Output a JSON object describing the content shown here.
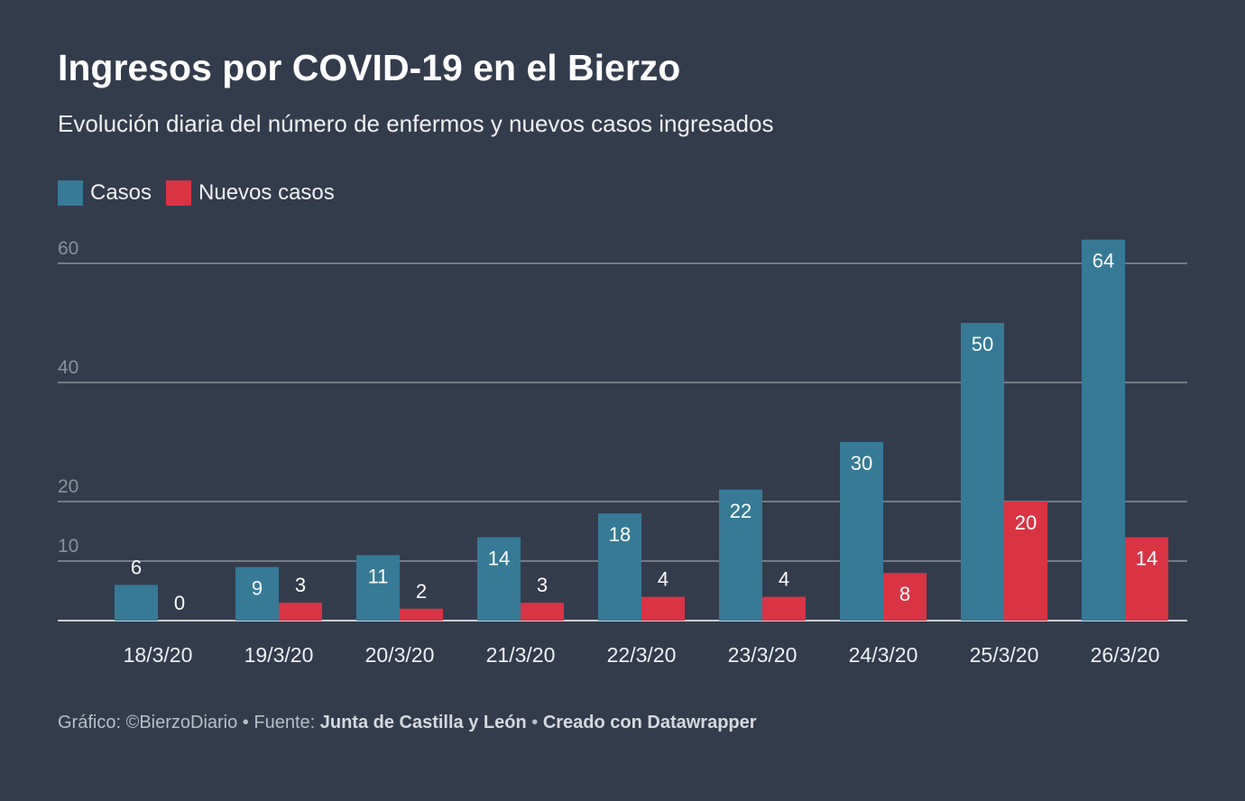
{
  "header": {
    "title": "Ingresos por COVID-19 en el Bierzo",
    "subtitle": "Evolución diaria del número de enfermos y nuevos casos ingresados"
  },
  "footer": {
    "prefix": "Gráfico: ©BierzoDiario • Fuente: ",
    "source": "Junta de Castilla y León",
    "separator": " • ",
    "credit": "Creado con Datawrapper"
  },
  "colors": {
    "background": "#333c4d",
    "casos": "#377a96",
    "nuevos": "#d83444",
    "grid": "#8a8f99",
    "axis_label": "#8b919b"
  },
  "chart_data": {
    "type": "bar",
    "title": "Ingresos por COVID-19 en el Bierzo",
    "subtitle": "Evolución diaria del número de enfermos y nuevos casos ingresados",
    "categories": [
      "18/3/20",
      "19/3/20",
      "20/3/20",
      "21/3/20",
      "22/3/20",
      "23/3/20",
      "24/3/20",
      "25/3/20",
      "26/3/20"
    ],
    "series": [
      {
        "name": "Casos",
        "values": [
          6,
          9,
          11,
          14,
          18,
          22,
          30,
          50,
          64
        ]
      },
      {
        "name": "Nuevos casos",
        "values": [
          0,
          3,
          2,
          3,
          4,
          4,
          8,
          20,
          14
        ]
      }
    ],
    "yticks": [
      10,
      20,
      40,
      60
    ],
    "ylim": [
      0,
      64
    ],
    "grid": true,
    "legend": "top-left",
    "xlabel": "",
    "ylabel": ""
  }
}
